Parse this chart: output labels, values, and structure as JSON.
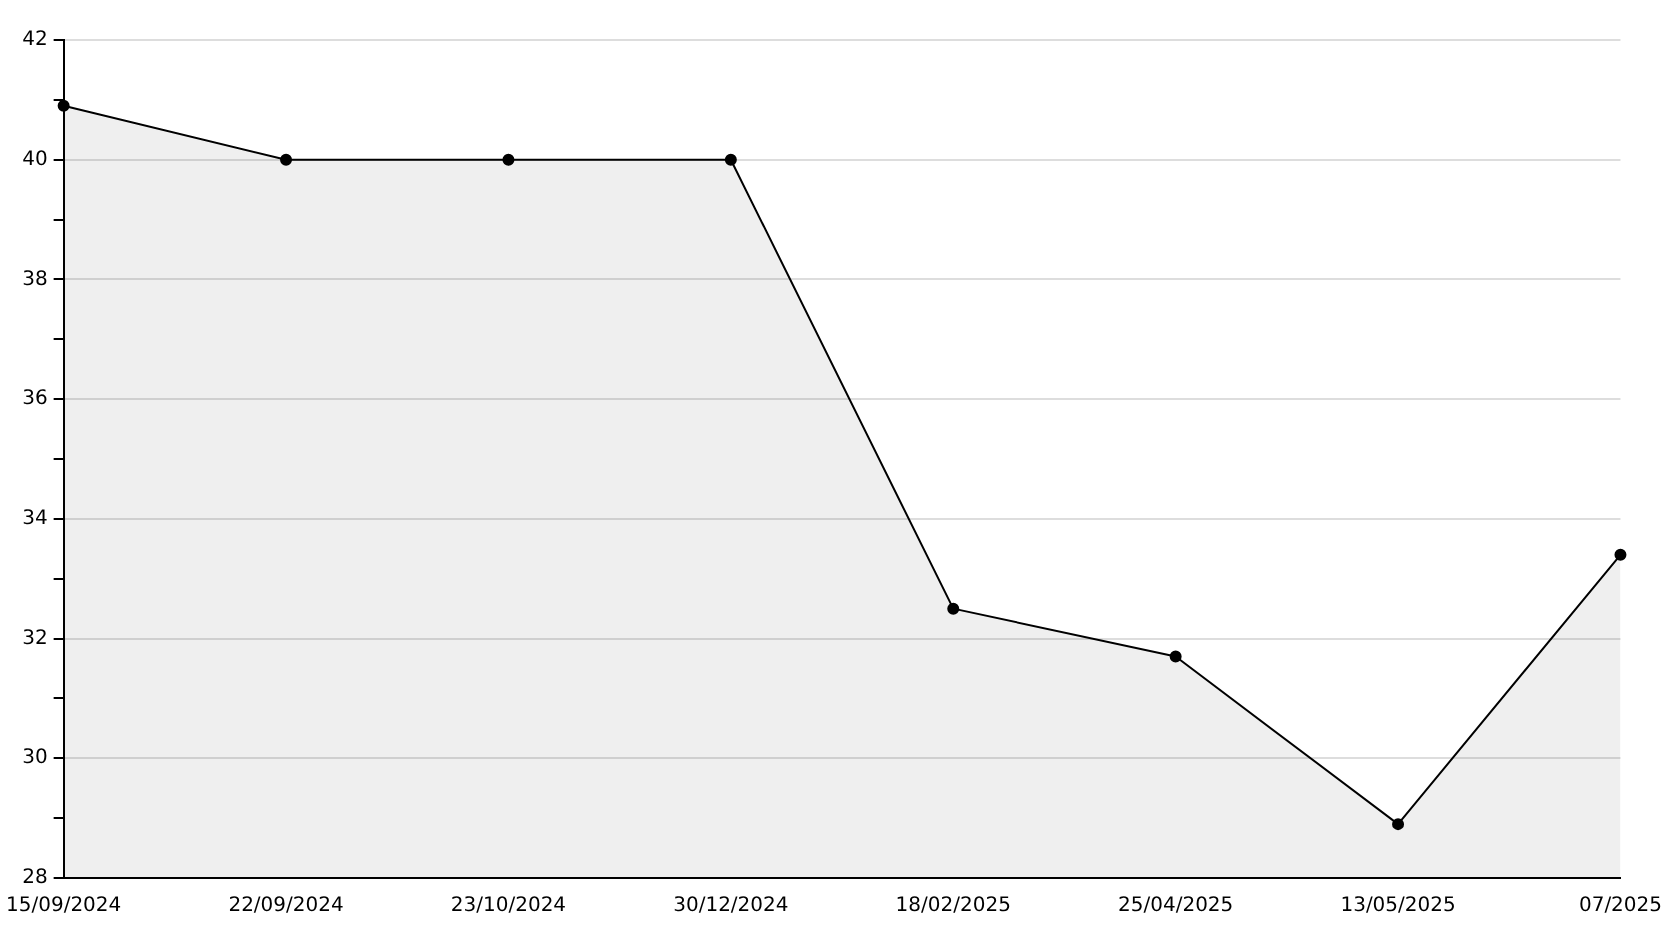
{
  "chart_data": {
    "type": "area",
    "categories": [
      "15/09/2024",
      "22/09/2024",
      "23/10/2024",
      "30/12/2024",
      "18/02/2025",
      "25/04/2025",
      "13/05/2025",
      "07/2025"
    ],
    "series": [
      {
        "color": "#000000",
        "values": [
          40.9,
          40.0,
          40.0,
          40.0,
          32.5,
          31.7,
          28.9,
          33.4
        ]
      }
    ],
    "ylim": [
      28,
      42
    ],
    "yticks": [
      28,
      {
        "value": 29,
        "label": null
      },
      30,
      {
        "value": 31,
        "label": null
      },
      32,
      {
        "value": 33,
        "label": null
      },
      34,
      {
        "value": 35,
        "label": null
      },
      36,
      {
        "value": 37,
        "label": null
      },
      38,
      {
        "value": 39,
        "label": null
      },
      40,
      {
        "value": 41,
        "label": null
      },
      42
    ],
    "grid": "y",
    "marker": "circle",
    "legend": false
  }
}
